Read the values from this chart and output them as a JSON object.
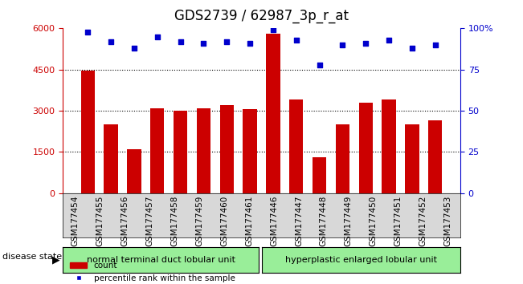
{
  "title": "GDS2739 / 62987_3p_r_at",
  "samples": [
    "GSM177454",
    "GSM177455",
    "GSM177456",
    "GSM177457",
    "GSM177458",
    "GSM177459",
    "GSM177460",
    "GSM177461",
    "GSM177446",
    "GSM177447",
    "GSM177448",
    "GSM177449",
    "GSM177450",
    "GSM177451",
    "GSM177452",
    "GSM177453"
  ],
  "counts": [
    4450,
    2500,
    1600,
    3100,
    3000,
    3100,
    3200,
    3050,
    5800,
    3400,
    1300,
    2500,
    3300,
    3400,
    2500,
    2650
  ],
  "percentiles": [
    98,
    92,
    88,
    95,
    92,
    91,
    92,
    91,
    99,
    93,
    78,
    90,
    91,
    93,
    88,
    90
  ],
  "bar_color": "#cc0000",
  "dot_color": "#0000cc",
  "group1_label": "normal terminal duct lobular unit",
  "group2_label": "hyperplastic enlarged lobular unit",
  "group1_count": 8,
  "group2_count": 8,
  "group_color": "#99ee99",
  "disease_state_label": "disease state",
  "legend_count_label": "count",
  "legend_pct_label": "percentile rank within the sample",
  "ylim_left": [
    0,
    6000
  ],
  "ylim_right": [
    0,
    100
  ],
  "yticks_left": [
    0,
    1500,
    3000,
    4500,
    6000
  ],
  "yticks_right": [
    0,
    25,
    50,
    75,
    100
  ],
  "grid_color": "black",
  "bg_color": "white",
  "title_fontsize": 12,
  "tick_label_fontsize": 7.5
}
